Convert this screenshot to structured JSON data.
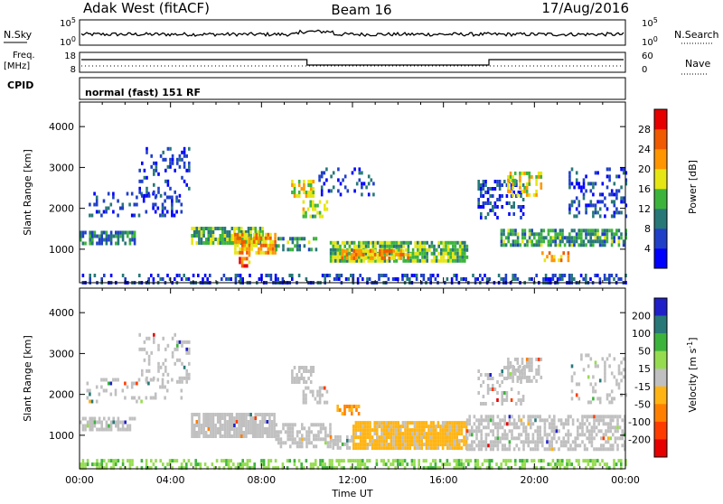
{
  "header": {
    "station": "Adak West (fitACF)",
    "beam": "Beam 16",
    "date": "17/Aug/2016"
  },
  "colors": {
    "frame": "#000000",
    "background": "#ffffff",
    "velocity_ground_scatter": "#c0c0c0"
  },
  "strips": {
    "nsky": {
      "left_label": "N.Sky",
      "right_label": "N.Search",
      "ticks_left": [
        "10^5",
        "10^0"
      ],
      "ticks_right": [
        "10^5",
        "10^0"
      ]
    },
    "freq": {
      "left_label_line1": "Freq.",
      "left_label_line2": "[MHz]",
      "right_label": "Nave",
      "ticks_left": [
        "18",
        "8"
      ],
      "ticks_right": [
        "60",
        "0"
      ]
    },
    "cpid": {
      "label": "CPID",
      "value": "normal (fast) 151 RF"
    }
  },
  "chart_data": [
    {
      "type": "heatmap",
      "panel": "power",
      "ylabel": "Slant Range [km]",
      "ylim": [
        180,
        4600
      ],
      "yticks": [
        1000,
        2000,
        3000,
        4000
      ],
      "xlim_hours": [
        0,
        24
      ],
      "colorbar": {
        "label": "Power [dB]",
        "range": [
          0,
          32
        ],
        "ticks": [
          4,
          8,
          12,
          16,
          20,
          24,
          28
        ],
        "colors": [
          "#0000ff",
          "#2040c8",
          "#287878",
          "#3cb43c",
          "#e6e614",
          "#ff9600",
          "#f05a00",
          "#e60000"
        ]
      },
      "regions": [
        {
          "t0": 0.0,
          "t1": 2.4,
          "r0": 1150,
          "r1": 1450,
          "level": 10,
          "density": 0.7
        },
        {
          "t0": 0.3,
          "t1": 4.5,
          "r0": 1800,
          "r1": 2400,
          "level": 6,
          "density": 0.25
        },
        {
          "t0": 2.6,
          "t1": 4.8,
          "r0": 2300,
          "r1": 3500,
          "level": 6,
          "density": 0.25
        },
        {
          "t0": 4.9,
          "t1": 8.0,
          "r0": 1150,
          "r1": 1550,
          "level": 14,
          "density": 0.85
        },
        {
          "t0": 6.8,
          "t1": 8.6,
          "r0": 900,
          "r1": 1400,
          "level": 22,
          "density": 0.8
        },
        {
          "t0": 7.0,
          "t1": 7.5,
          "r0": 600,
          "r1": 900,
          "level": 24,
          "density": 0.6
        },
        {
          "t0": 8.6,
          "t1": 10.4,
          "r0": 1000,
          "r1": 1300,
          "level": 12,
          "density": 0.5
        },
        {
          "t0": 9.3,
          "t1": 10.3,
          "r0": 2300,
          "r1": 2700,
          "level": 18,
          "density": 0.6
        },
        {
          "t0": 9.8,
          "t1": 10.9,
          "r0": 1800,
          "r1": 2200,
          "level": 16,
          "density": 0.5
        },
        {
          "t0": 10.5,
          "t1": 13.0,
          "r0": 2300,
          "r1": 3000,
          "level": 6,
          "density": 0.2
        },
        {
          "t0": 11.0,
          "t1": 17.0,
          "r0": 700,
          "r1": 1200,
          "level": 14,
          "density": 0.85
        },
        {
          "t0": 11.5,
          "t1": 14.5,
          "r0": 750,
          "r1": 1000,
          "level": 22,
          "density": 0.7
        },
        {
          "t0": 17.5,
          "t1": 19.5,
          "r0": 1800,
          "r1": 2700,
          "level": 6,
          "density": 0.35
        },
        {
          "t0": 18.8,
          "t1": 20.3,
          "r0": 2300,
          "r1": 2900,
          "level": 18,
          "density": 0.5
        },
        {
          "t0": 18.5,
          "t1": 24.0,
          "r0": 1100,
          "r1": 1500,
          "level": 12,
          "density": 0.7
        },
        {
          "t0": 20.2,
          "t1": 21.5,
          "r0": 700,
          "r1": 950,
          "level": 22,
          "density": 0.6
        },
        {
          "t0": 21.5,
          "t1": 24.0,
          "r0": 1800,
          "r1": 3000,
          "level": 6,
          "density": 0.25
        },
        {
          "t0": 0.0,
          "t1": 24.0,
          "r0": 180,
          "r1": 400,
          "level": 6,
          "density": 0.4
        }
      ]
    },
    {
      "type": "heatmap",
      "panel": "velocity",
      "ylabel": "Slant Range [km]",
      "ylim": [
        180,
        4600
      ],
      "yticks": [
        1000,
        2000,
        3000,
        4000
      ],
      "xlim_hours": [
        0,
        24
      ],
      "xticks": [
        "00:00",
        "04:00",
        "08:00",
        "12:00",
        "16:00",
        "20:00",
        "00:00"
      ],
      "xlabel": "Time UT",
      "colorbar": {
        "label": "Velocity [m s^-1]",
        "ticks": [
          "200",
          "100",
          "50",
          "15",
          "-15",
          "-50",
          "-100",
          "-200"
        ],
        "colors": [
          "#2020c8",
          "#287878",
          "#3cb43c",
          "#96dc50",
          "#c0c0c0",
          "#ffb414",
          "#ff8000",
          "#ff3c00",
          "#e60000"
        ]
      },
      "regions": [
        {
          "t0": 0.0,
          "t1": 2.4,
          "r0": 1150,
          "r1": 1450,
          "code": "g",
          "density": 0.6
        },
        {
          "t0": 2.6,
          "t1": 4.8,
          "r0": 2300,
          "r1": 3500,
          "code": "g",
          "density": 0.25
        },
        {
          "t0": 0.3,
          "t1": 4.5,
          "r0": 1800,
          "r1": 2400,
          "code": "g",
          "density": 0.2
        },
        {
          "t0": 4.9,
          "t1": 8.6,
          "r0": 1000,
          "r1": 1550,
          "code": "g",
          "density": 0.85
        },
        {
          "t0": 8.6,
          "t1": 11.0,
          "r0": 700,
          "r1": 1300,
          "code": "g",
          "density": 0.6
        },
        {
          "t0": 9.3,
          "t1": 10.3,
          "r0": 2300,
          "r1": 2700,
          "code": "g",
          "density": 0.6
        },
        {
          "t0": 9.8,
          "t1": 10.9,
          "r0": 1800,
          "r1": 2200,
          "code": "g",
          "density": 0.5
        },
        {
          "t0": 11.3,
          "t1": 12.3,
          "r0": 1550,
          "r1": 1750,
          "code": "o",
          "density": 0.6
        },
        {
          "t0": 12.0,
          "t1": 17.0,
          "r0": 700,
          "r1": 1350,
          "code": "y",
          "density": 0.9
        },
        {
          "t0": 11.0,
          "t1": 12.0,
          "r0": 700,
          "r1": 1000,
          "code": "g",
          "density": 0.6
        },
        {
          "t0": 17.5,
          "t1": 19.5,
          "r0": 1800,
          "r1": 2700,
          "code": "g",
          "density": 0.3
        },
        {
          "t0": 18.8,
          "t1": 20.3,
          "r0": 2300,
          "r1": 2900,
          "code": "g",
          "density": 0.5
        },
        {
          "t0": 17.0,
          "t1": 24.0,
          "r0": 700,
          "r1": 1500,
          "code": "g",
          "density": 0.6
        },
        {
          "t0": 21.5,
          "t1": 24.0,
          "r0": 1800,
          "r1": 3000,
          "code": "g",
          "density": 0.2
        },
        {
          "t0": 0.0,
          "t1": 24.0,
          "r0": 180,
          "r1": 420,
          "code": "lg",
          "density": 0.5
        }
      ]
    }
  ]
}
